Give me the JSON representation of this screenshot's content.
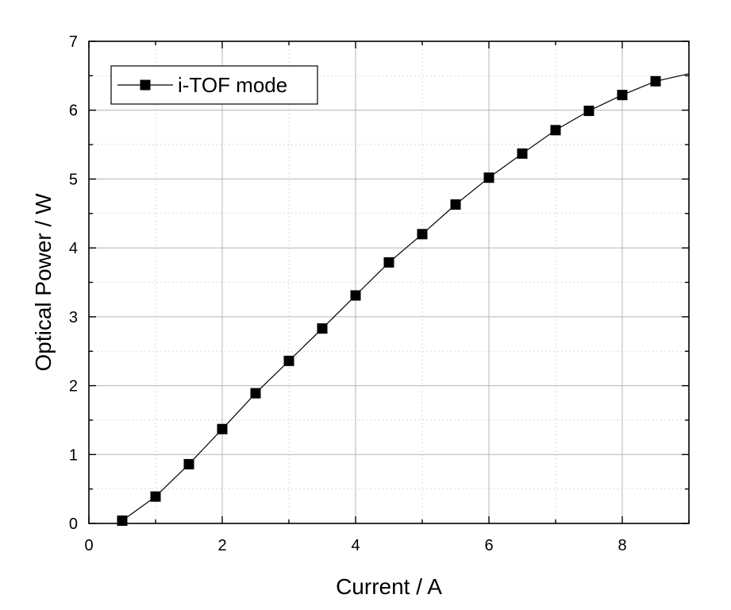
{
  "chart_data": {
    "type": "line",
    "xlabel": "Current  / A",
    "ylabel": "Optical Power / W",
    "xlim": [
      0,
      9
    ],
    "ylim": [
      0,
      7
    ],
    "x_ticks": [
      "0",
      "2",
      "4",
      "6",
      "8"
    ],
    "y_ticks": [
      "0",
      "1",
      "2",
      "3",
      "4",
      "5",
      "6",
      "7"
    ],
    "grid": true,
    "legend_position": "top-left",
    "series": [
      {
        "name": "i-TOF mode",
        "marker": "filled-square",
        "color": "#000000",
        "x": [
          0.5,
          1.0,
          1.5,
          2.0,
          2.5,
          3.0,
          3.5,
          4.0,
          4.5,
          5.0,
          5.5,
          6.0,
          6.5,
          7.0,
          7.5,
          8.0,
          8.5
        ],
        "y": [
          0.04,
          0.39,
          0.86,
          1.37,
          1.89,
          2.36,
          2.83,
          3.31,
          3.79,
          4.2,
          4.63,
          5.02,
          5.37,
          5.71,
          5.99,
          6.22,
          6.42
        ],
        "line_end": [
          9.0,
          6.53
        ]
      }
    ]
  }
}
